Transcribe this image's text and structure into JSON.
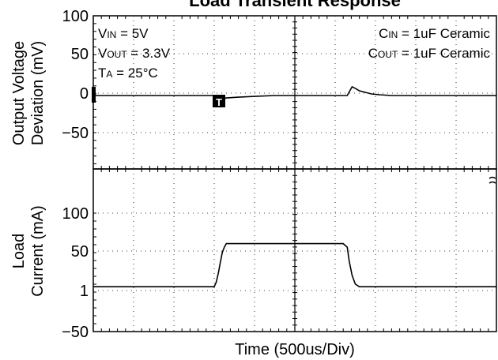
{
  "chart_data": {
    "type": "line",
    "title": "Load Transient Response",
    "xlabel": "Time  (500us/Div)",
    "x_divisions": 10,
    "x_unit_per_div_us": 500,
    "upper_panel": {
      "ylabel_lines": [
        "Output Voltage",
        "Deviation (mV)"
      ],
      "yticks": [
        "100",
        "50",
        "0",
        "−50"
      ],
      "ylim": [
        -92,
        100
      ],
      "grid": "dotted",
      "series": [
        {
          "x": [
            0,
            3.0,
            3.08,
            3.15,
            3.3,
            3.6,
            4.0,
            4.5,
            5.0,
            5.5,
            6.0,
            6.3,
            6.42,
            6.5,
            6.6,
            6.75,
            6.9,
            7.1,
            7.4,
            8.0,
            9.0,
            10.0
          ],
          "y": [
            0,
            0,
            -4,
            -5,
            -3,
            -2,
            -1,
            0,
            0,
            0,
            0,
            0,
            11,
            9,
            6,
            4,
            2,
            1,
            0,
            0,
            0,
            0
          ]
        }
      ],
      "annotations": {
        "left": [
          "V<sub>IN</sub> = 5V",
          "V<sub>OUT</sub> = 3.3V",
          "T<sub>A</sub> = 25°C"
        ],
        "right": [
          "C<sub>IN</sub> = 1uF Ceramic",
          "C<sub>OUT</sub> = 1uF Ceramic"
        ]
      },
      "trigger_marker": "T"
    },
    "lower_panel": {
      "ylabel_lines": [
        "Load",
        "Current (mA)"
      ],
      "yticks": [
        "100",
        "50",
        "1",
        "−50"
      ],
      "ylim": [
        -50,
        135
      ],
      "grid": "dotted",
      "series": [
        {
          "x": [
            0,
            3.0,
            3.05,
            3.1,
            3.15,
            3.2,
            3.25,
            3.3,
            3.4,
            3.6,
            6.2,
            6.3,
            6.35,
            6.42,
            6.5,
            6.6,
            6.8,
            10.0
          ],
          "y": [
            1,
            1,
            6,
            16,
            28,
            40,
            46,
            50,
            50,
            50,
            50,
            46,
            30,
            14,
            4,
            1,
            1,
            1
          ]
        }
      ]
    },
    "trace_color": "#000000",
    "grid_color": "#000000"
  }
}
